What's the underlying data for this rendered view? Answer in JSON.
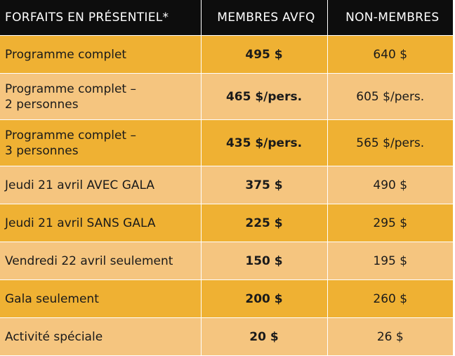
{
  "table": {
    "headers": {
      "package": "FORFAITS EN PRÉSENTIEL*",
      "members": "MEMBRES AVFQ",
      "non_members": "NON-MEMBRES"
    },
    "rows": [
      {
        "label_lines": [
          "Programme complet"
        ],
        "member_price": "495 $",
        "non_member_price": "640 $"
      },
      {
        "label_lines": [
          "Programme complet –",
          "2 personnes"
        ],
        "member_price": "465 $/pers.",
        "non_member_price": "605 $/pers."
      },
      {
        "label_lines": [
          "Programme complet –",
          "3 personnes"
        ],
        "member_price": "435 $/pers.",
        "non_member_price": "565 $/pers."
      },
      {
        "label_lines": [
          "Jeudi 21 avril AVEC GALA"
        ],
        "member_price": "375 $",
        "non_member_price": "490 $"
      },
      {
        "label_lines": [
          "Jeudi 21 avril SANS GALA"
        ],
        "member_price": "225 $",
        "non_member_price": "295 $"
      },
      {
        "label_lines": [
          "Vendredi 22 avril seulement"
        ],
        "member_price": "150 $",
        "non_member_price": "195 $"
      },
      {
        "label_lines": [
          "Gala seulement"
        ],
        "member_price": "200 $",
        "non_member_price": "260 $"
      },
      {
        "label_lines": [
          "Activité spéciale"
        ],
        "member_price": "20 $",
        "non_member_price": "26 $"
      }
    ]
  },
  "colors": {
    "header_bg": "#0d0d0d",
    "row_dark": "#efb133",
    "row_light": "#f5c57f"
  }
}
